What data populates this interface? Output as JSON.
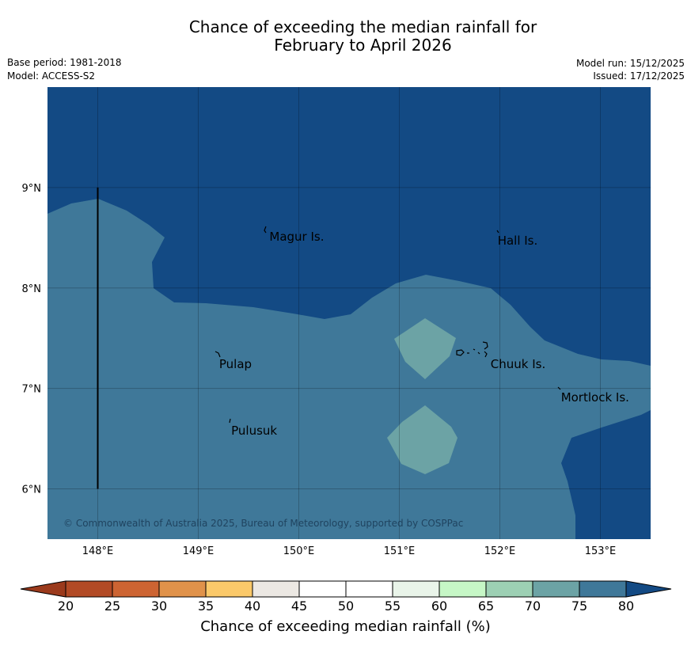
{
  "title_line1": "Chance of exceeding the median rainfall for",
  "title_line2": "February to April 2026",
  "meta": {
    "base_period": "Base period: 1981-2018",
    "model": "Model: ACCESS-S2",
    "model_run": "Model run: 15/12/2025",
    "issued": "Issued: 17/12/2025"
  },
  "map": {
    "lon_range": [
      147.5,
      153.5
    ],
    "lat_range": [
      5.5,
      10.0
    ],
    "lon_ticks": [
      {
        "value": 148,
        "label": "148°E"
      },
      {
        "value": 149,
        "label": "149°E"
      },
      {
        "value": 150,
        "label": "150°E"
      },
      {
        "value": 151,
        "label": "151°E"
      },
      {
        "value": 152,
        "label": "152°E"
      },
      {
        "value": 153,
        "label": "153°E"
      }
    ],
    "lat_ticks": [
      {
        "value": 9,
        "label": "9°N"
      },
      {
        "value": 8,
        "label": "8°N"
      },
      {
        "value": 7,
        "label": "7°N"
      },
      {
        "value": 6,
        "label": "6°N"
      }
    ],
    "places": [
      {
        "name": "Magur Is.",
        "lon": 149.7,
        "lat": 8.55
      },
      {
        "name": "Hall Is.",
        "lon": 151.97,
        "lat": 8.51
      },
      {
        "name": "Pulap",
        "lon": 149.2,
        "lat": 7.28
      },
      {
        "name": "Chuuk Is.",
        "lon": 151.9,
        "lat": 7.28
      },
      {
        "name": "Mortlock Is.",
        "lon": 152.6,
        "lat": 6.95
      },
      {
        "name": "Pulusuk",
        "lon": 149.32,
        "lat": 6.62
      }
    ],
    "boundary_line_lon": 148.0,
    "copyright": "© Commonwealth of Australia 2025, Bureau of Meteorology, supported by COSPPac",
    "category_colors": {
      "over_80": "#134a84",
      "75_80": "#3f7899",
      "70_75": "#6ca3a5"
    }
  },
  "colorbar": {
    "label": "Chance of exceeding median rainfall (%)",
    "ticks": [
      "20",
      "25",
      "30",
      "35",
      "40",
      "45",
      "50",
      "55",
      "60",
      "65",
      "70",
      "75",
      "80"
    ],
    "colors": [
      "#b24a25",
      "#cd6432",
      "#e0924a",
      "#fbc96a",
      "#ece8e3",
      "#ffffff",
      "#ffffff",
      "#e9f4e9",
      "#c6f7c6",
      "#9dd0b4",
      "#6ca3a5",
      "#3f7899"
    ],
    "under_color": "#9b3a1c",
    "over_color": "#134a84"
  }
}
